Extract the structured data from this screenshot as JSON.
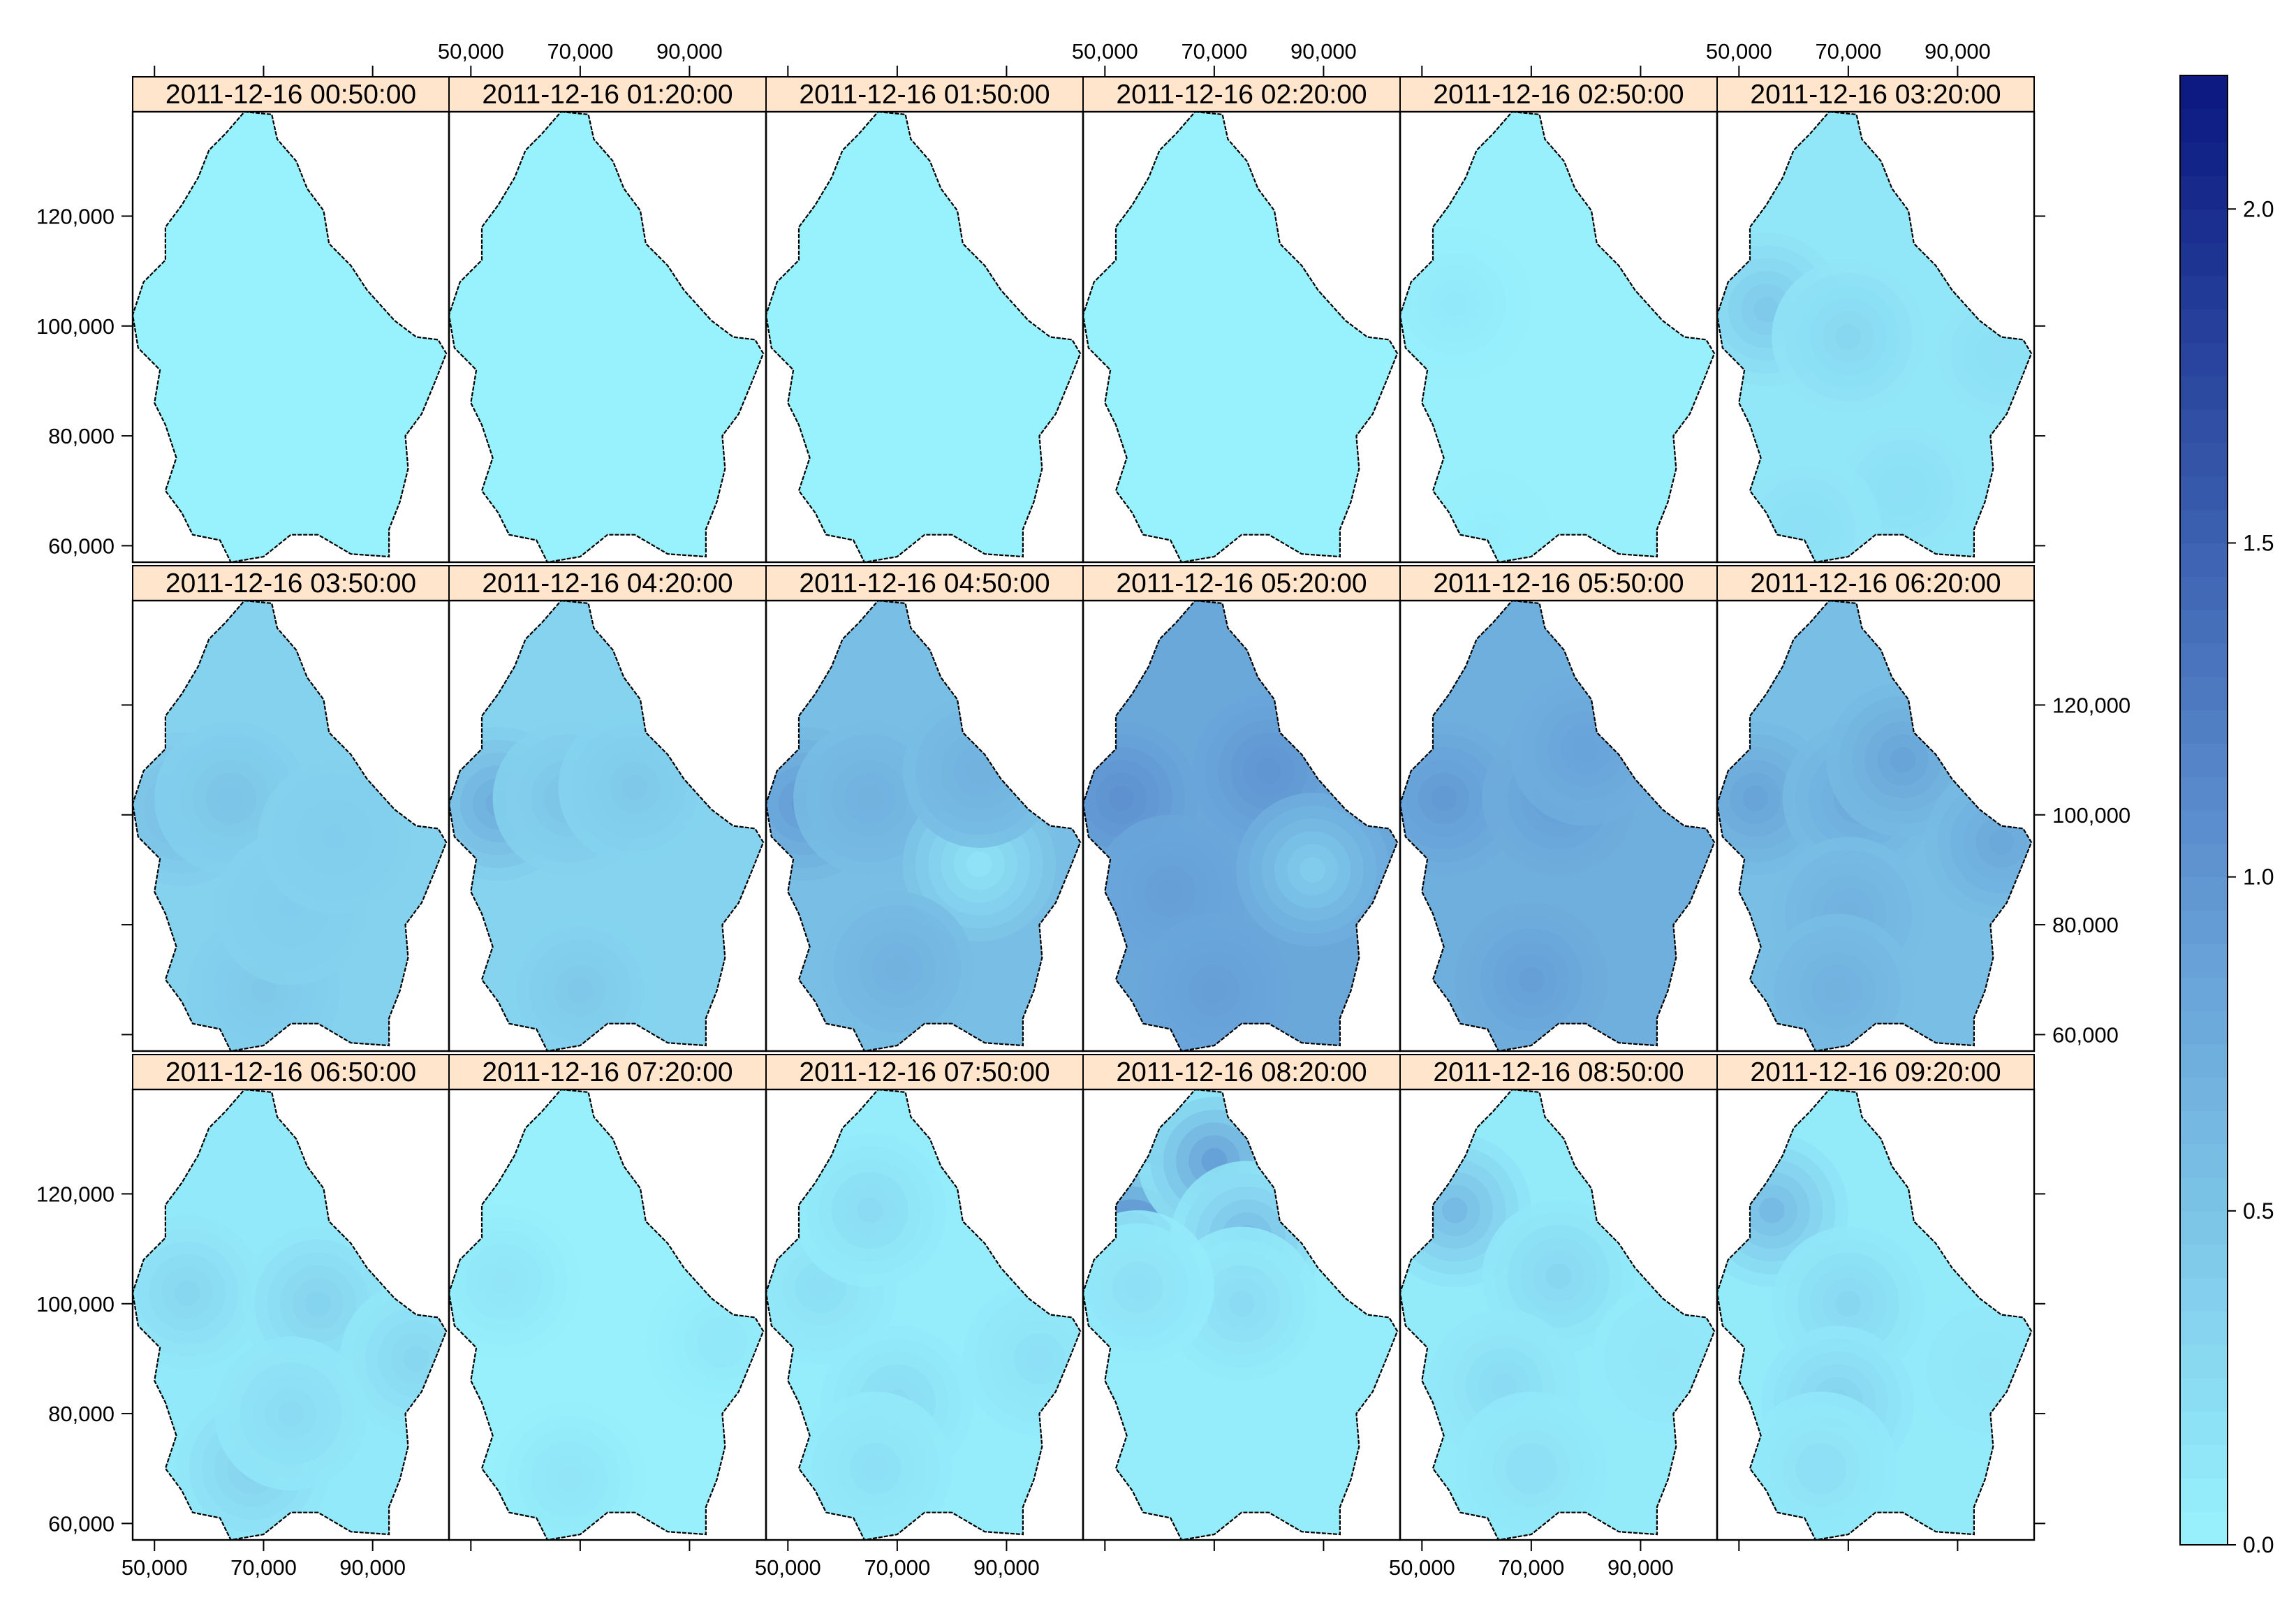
{
  "chart_data": {
    "type": "heatmap",
    "title": "",
    "xlabel": "",
    "ylabel": "",
    "layout": {
      "columns": 6,
      "rows": 3
    },
    "xlim": [
      46000,
      104000
    ],
    "ylim": [
      57000,
      139000
    ],
    "x_ticks": [
      50000,
      70000,
      90000
    ],
    "x_tick_labels": [
      "50,000",
      "70,000",
      "90,000"
    ],
    "y_ticks": [
      60000,
      80000,
      100000,
      120000
    ],
    "y_tick_labels": [
      "60,000",
      "80,000",
      "100,000",
      "120,000"
    ],
    "colorkey": {
      "min": 0.0,
      "max": 2.2,
      "low_color": "#98f2fd",
      "high_color": "#0a1780",
      "ticks": [
        0.0,
        0.5,
        1.0,
        1.5,
        2.0
      ],
      "tick_labels": [
        "0.0",
        "0.5",
        "1.0",
        "1.5",
        "2.0"
      ]
    },
    "strip_color": "#ffe5cc",
    "outline_color": "#000000",
    "panels": [
      {
        "label": "2011-12-16 00:50:00",
        "base": 0.0,
        "hotspots": []
      },
      {
        "label": "2011-12-16 01:20:00",
        "base": 0.0,
        "hotspots": []
      },
      {
        "label": "2011-12-16 01:50:00",
        "base": 0.0,
        "hotspots": []
      },
      {
        "label": "2011-12-16 02:20:00",
        "base": 0.0,
        "hotspots": []
      },
      {
        "label": "2011-12-16 02:50:00",
        "base": 0.02,
        "hotspots": [
          [
            56000,
            104000,
            0.1
          ],
          [
            62000,
            62000,
            0.06
          ]
        ]
      },
      {
        "label": "2011-12-16 03:20:00",
        "base": 0.12,
        "hotspots": [
          [
            55000,
            103000,
            0.45
          ],
          [
            70000,
            98000,
            0.3
          ],
          [
            80000,
            70000,
            0.2
          ],
          [
            62000,
            63000,
            0.2
          ],
          [
            98000,
            95000,
            0.2
          ]
        ]
      },
      {
        "label": "2011-12-16 03:50:00",
        "base": 0.35,
        "hotspots": [
          [
            55000,
            101000,
            0.6
          ],
          [
            64000,
            103000,
            0.5
          ],
          [
            70000,
            68000,
            0.45
          ],
          [
            75000,
            83000,
            0.4
          ],
          [
            83000,
            96000,
            0.4
          ]
        ]
      },
      {
        "label": "2011-12-16 04:20:00",
        "base": 0.33,
        "hotspots": [
          [
            55000,
            102000,
            0.75
          ],
          [
            68000,
            103000,
            0.5
          ],
          [
            70000,
            68000,
            0.45
          ],
          [
            80000,
            105000,
            0.45
          ]
        ]
      },
      {
        "label": "2011-12-16 04:50:00",
        "base": 0.55,
        "hotspots": [
          [
            53000,
            102000,
            0.95
          ],
          [
            65000,
            103000,
            0.7
          ],
          [
            85000,
            91000,
            0.15
          ],
          [
            70000,
            72000,
            0.7
          ],
          [
            85000,
            108000,
            0.7
          ]
        ]
      },
      {
        "label": "2011-12-16 05:20:00",
        "base": 0.8,
        "hotspots": [
          [
            53000,
            103000,
            1.05
          ],
          [
            80000,
            108000,
            1.0
          ],
          [
            62000,
            86000,
            0.9
          ],
          [
            88000,
            90000,
            0.4
          ],
          [
            70000,
            68000,
            0.9
          ]
        ]
      },
      {
        "label": "2011-12-16 05:50:00",
        "base": 0.72,
        "hotspots": [
          [
            54000,
            103000,
            0.95
          ],
          [
            75000,
            103000,
            0.9
          ],
          [
            70000,
            70000,
            0.9
          ],
          [
            80000,
            112000,
            0.85
          ]
        ]
      },
      {
        "label": "2011-12-16 06:20:00",
        "base": 0.55,
        "hotspots": [
          [
            53000,
            103000,
            0.85
          ],
          [
            72000,
            103000,
            0.8
          ],
          [
            80000,
            110000,
            0.85
          ],
          [
            98000,
            95000,
            0.8
          ],
          [
            70000,
            82000,
            0.7
          ],
          [
            68000,
            68000,
            0.7
          ]
        ]
      },
      {
        "label": "2011-12-16 06:50:00",
        "base": 0.1,
        "hotspots": [
          [
            56000,
            102000,
            0.3
          ],
          [
            80000,
            100000,
            0.35
          ],
          [
            98000,
            90000,
            0.3
          ],
          [
            68000,
            70000,
            0.35
          ],
          [
            75000,
            80000,
            0.25
          ]
        ]
      },
      {
        "label": "2011-12-16 07:20:00",
        "base": 0.02,
        "hotspots": [
          [
            56000,
            104000,
            0.15
          ],
          [
            68000,
            68000,
            0.15
          ],
          [
            96000,
            93000,
            0.12
          ]
        ]
      },
      {
        "label": "2011-12-16 07:50:00",
        "base": 0.06,
        "hotspots": [
          [
            56000,
            103000,
            0.22
          ],
          [
            65000,
            117000,
            0.25
          ],
          [
            70000,
            82000,
            0.25
          ],
          [
            66000,
            70000,
            0.2
          ],
          [
            96000,
            90000,
            0.2
          ]
        ]
      },
      {
        "label": "2011-12-16 08:20:00",
        "base": 0.05,
        "hotspots": [
          [
            60000,
            118000,
            1.9
          ],
          [
            55000,
            112000,
            1.4
          ],
          [
            70000,
            126000,
            0.9
          ],
          [
            76000,
            112000,
            0.6
          ],
          [
            75000,
            100000,
            0.25
          ],
          [
            56000,
            103000,
            0.2
          ]
        ]
      },
      {
        "label": "2011-12-16 08:50:00",
        "base": 0.08,
        "hotspots": [
          [
            56000,
            117000,
            0.6
          ],
          [
            75000,
            105000,
            0.3
          ],
          [
            65000,
            85000,
            0.25
          ],
          [
            70000,
            70000,
            0.2
          ],
          [
            95000,
            90000,
            0.15
          ]
        ]
      },
      {
        "label": "2011-12-16 09:20:00",
        "base": 0.08,
        "hotspots": [
          [
            56000,
            117000,
            0.6
          ],
          [
            70000,
            100000,
            0.3
          ],
          [
            68000,
            82000,
            0.35
          ],
          [
            65000,
            70000,
            0.2
          ],
          [
            96000,
            88000,
            0.15
          ]
        ]
      }
    ],
    "boundary": [
      [
        66500,
        139000
      ],
      [
        71500,
        138500
      ],
      [
        72500,
        134000
      ],
      [
        76000,
        130000
      ],
      [
        78000,
        125000
      ],
      [
        81000,
        121000
      ],
      [
        82000,
        115000
      ],
      [
        86000,
        111000
      ],
      [
        89000,
        106500
      ],
      [
        94000,
        101000
      ],
      [
        98000,
        98000
      ],
      [
        102000,
        97500
      ],
      [
        103500,
        95000
      ],
      [
        101500,
        90000
      ],
      [
        99000,
        84000
      ],
      [
        96000,
        80000
      ],
      [
        96500,
        74000
      ],
      [
        95000,
        68000
      ],
      [
        93000,
        63000
      ],
      [
        93000,
        58000
      ],
      [
        86000,
        58500
      ],
      [
        80000,
        62000
      ],
      [
        75000,
        62000
      ],
      [
        70000,
        58000
      ],
      [
        64000,
        57000
      ],
      [
        62000,
        61000
      ],
      [
        57000,
        62000
      ],
      [
        55000,
        66000
      ],
      [
        52000,
        70000
      ],
      [
        54000,
        76000
      ],
      [
        52000,
        82000
      ],
      [
        50000,
        86000
      ],
      [
        51000,
        92000
      ],
      [
        47000,
        96000
      ],
      [
        46000,
        102000
      ],
      [
        48000,
        108000
      ],
      [
        52000,
        112000
      ],
      [
        52000,
        118000
      ],
      [
        55000,
        122000
      ],
      [
        58000,
        127000
      ],
      [
        60000,
        132000
      ],
      [
        63000,
        135000
      ]
    ]
  }
}
